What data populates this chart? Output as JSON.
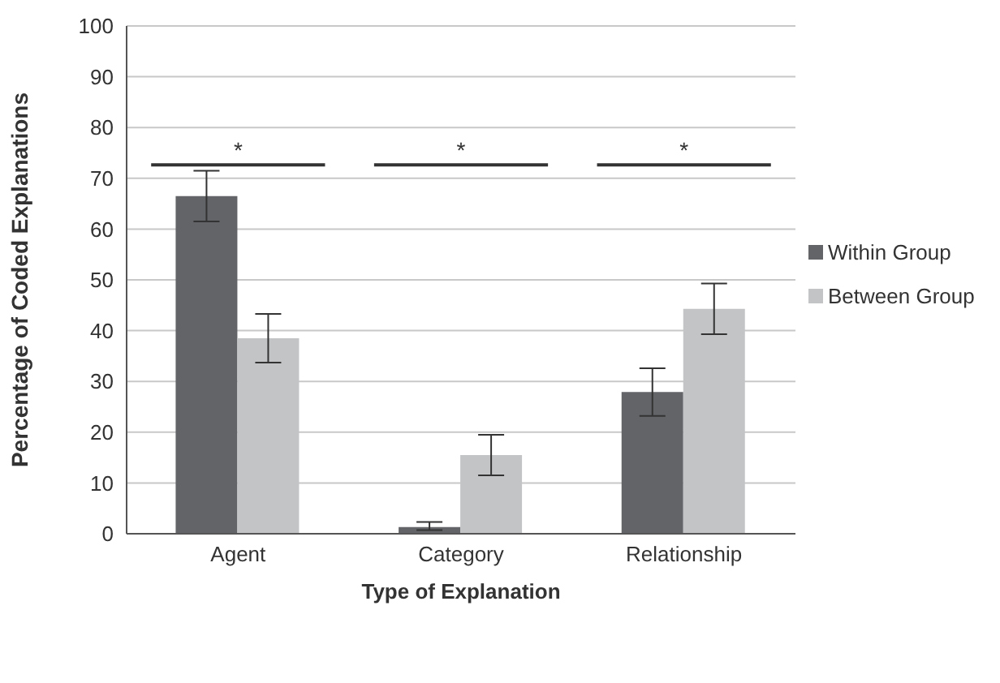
{
  "chart_data": {
    "type": "bar",
    "xlabel": "Type of Explanation",
    "ylabel": "Percentage of Coded Explanations",
    "categories": [
      "Agent",
      "Category",
      "Relationship"
    ],
    "series": [
      {
        "name": "Within Group",
        "color": "#636468",
        "values": [
          66.5,
          1.3,
          27.9
        ],
        "errors": [
          5,
          [
            0.7,
            2.3
          ],
          4.7
        ]
      },
      {
        "name": "Between Group",
        "color": "#c3c4c6",
        "values": [
          38.5,
          15.5,
          44.3
        ],
        "errors": [
          4.8,
          4,
          5
        ]
      }
    ],
    "ylim": [
      0,
      100
    ],
    "yticks": [
      0,
      10,
      20,
      30,
      40,
      50,
      60,
      70,
      80,
      90,
      100
    ],
    "grid": "y",
    "legend": "right",
    "annotations": [
      "*",
      "*",
      "*"
    ]
  }
}
